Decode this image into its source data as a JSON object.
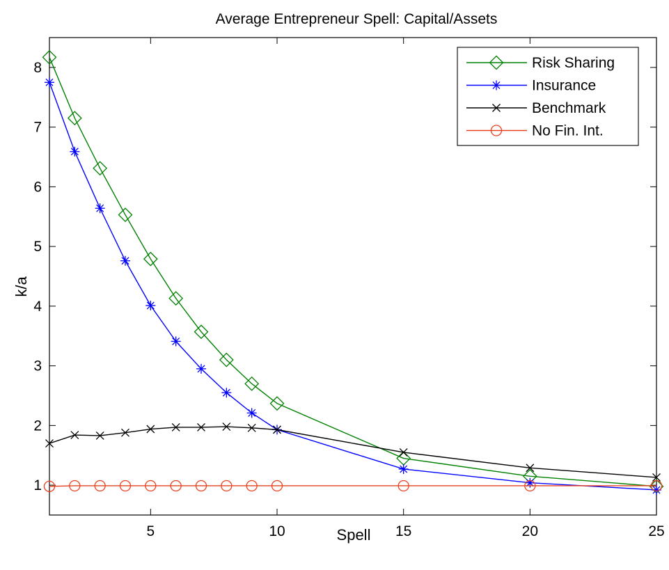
{
  "chart_data": {
    "type": "line",
    "title": "Average Entrepreneur Spell: Capital/Assets",
    "xlabel": "Spell",
    "ylabel": "k/a",
    "xlim": [
      1,
      25
    ],
    "ylim": [
      0.5,
      8.5
    ],
    "xticks": [
      5,
      10,
      15,
      20,
      25
    ],
    "yticks": [
      1,
      2,
      3,
      4,
      5,
      6,
      7,
      8
    ],
    "grid": false,
    "legend_position": "top-right",
    "x": [
      1,
      2,
      3,
      4,
      5,
      6,
      7,
      8,
      9,
      10,
      15,
      20,
      25
    ],
    "series": [
      {
        "name": "Risk Sharing",
        "color": "#008000",
        "marker": "diamond",
        "values": [
          8.17,
          7.15,
          6.31,
          5.53,
          4.79,
          4.13,
          3.57,
          3.1,
          2.7,
          2.37,
          1.45,
          1.15,
          0.98
        ]
      },
      {
        "name": "Insurance",
        "color": "#0000ff",
        "marker": "asterisk",
        "values": [
          7.75,
          6.59,
          5.64,
          4.76,
          4.01,
          3.41,
          2.95,
          2.55,
          2.21,
          1.93,
          1.27,
          1.04,
          0.92
        ]
      },
      {
        "name": "Benchmark",
        "color": "#000000",
        "marker": "x",
        "values": [
          1.7,
          1.84,
          1.83,
          1.88,
          1.94,
          1.97,
          1.97,
          1.98,
          1.96,
          1.93,
          1.55,
          1.29,
          1.13
        ]
      },
      {
        "name": "No Fin. Int.",
        "color": "#e8401c",
        "marker": "circle",
        "values": [
          0.98,
          0.99,
          0.99,
          0.99,
          0.99,
          0.99,
          0.99,
          0.99,
          0.99,
          0.99,
          0.99,
          0.99,
          0.99
        ]
      }
    ]
  }
}
